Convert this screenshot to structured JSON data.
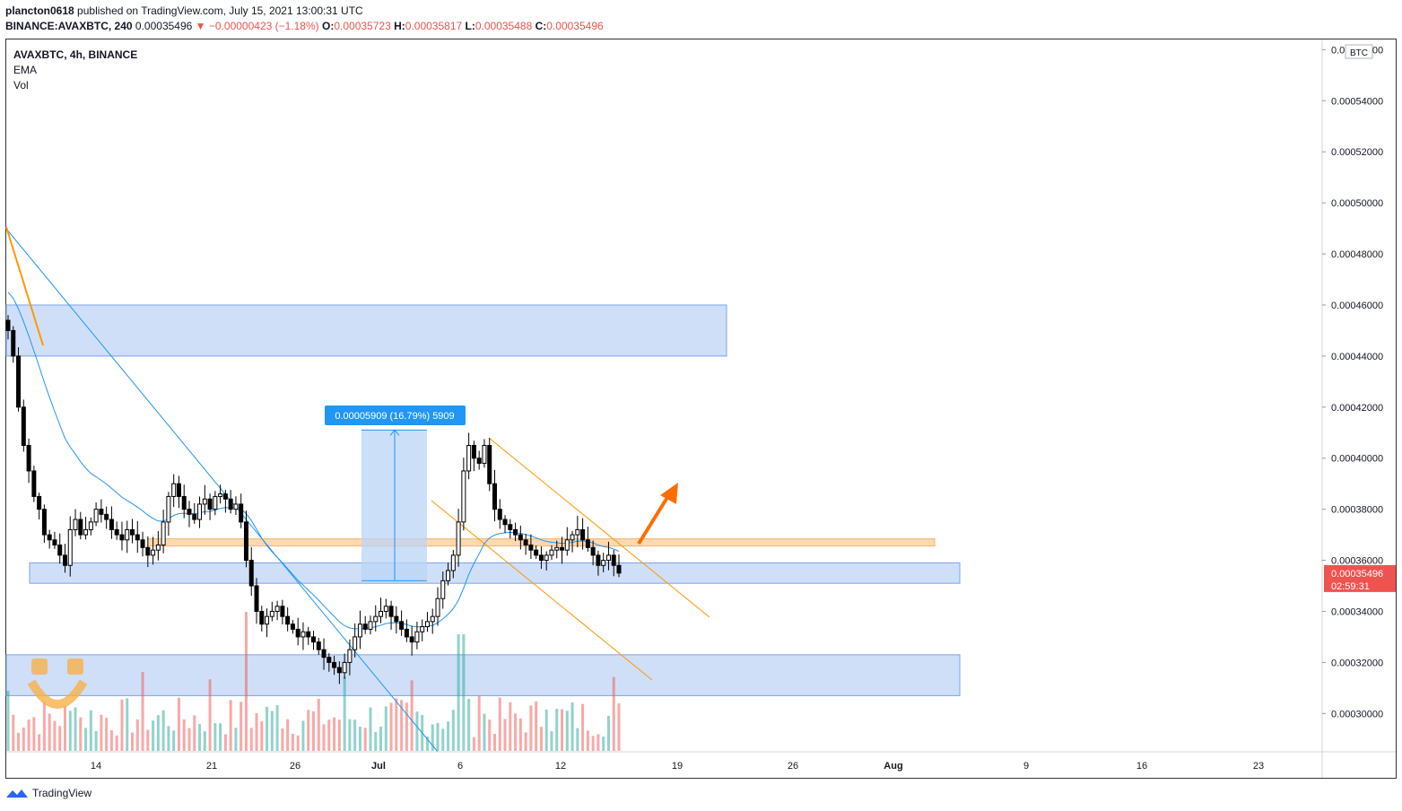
{
  "header": {
    "author": "plancton0618",
    "published": "published on TradingView.com, July 15, 2021 13:00:31 UTC"
  },
  "ticker": {
    "symbol": "BINANCE:AVAXBTC, 240",
    "last": "0.00035496",
    "change": "▼ −0.00000423 (−1.18%)",
    "o_label": "O:",
    "o": "0.00035723",
    "h_label": "H:",
    "h": "0.00035817",
    "l_label": "L:",
    "l": "0.00035488",
    "c_label": "C:",
    "c": "0.00035496"
  },
  "legend": {
    "title": "AVAXBTC, 4h, BINANCE",
    "ema": "EMA",
    "vol": "Vol"
  },
  "footer": {
    "brand": "TradingView"
  },
  "colors": {
    "up": "#26a69a",
    "down": "#ef5350",
    "zone": "#a8c4f2",
    "orange": "#ff9800",
    "ema": "#2196f3",
    "price_label": "#ef5350"
  },
  "chart_data": {
    "type": "line",
    "currency": "BTC",
    "y_ticks": [
      "0.00030000",
      "0.00032000",
      "0.00034000",
      "0.00036000",
      "0.00038000",
      "0.00040000",
      "0.00042000",
      "0.00044000",
      "0.00046000",
      "0.00048000",
      "0.00050000",
      "0.00052000",
      "0.00054000",
      "0.00056000"
    ],
    "x_ticks": [
      "14",
      "21",
      "26",
      "Jul",
      "6",
      "12",
      "19",
      "26",
      "Aug",
      "9",
      "16",
      "23"
    ],
    "ylim": [
      0.000285,
      0.000564
    ],
    "price_label": {
      "value": "0.00035496",
      "countdown": "02:59:31"
    },
    "measure_label": "0.00005909 (16.79%) 5909",
    "close_series": {
      "name": "AVAXBTC",
      "values": [
        0.00045,
        0.00044,
        0.00042,
        0.000405,
        0.000395,
        0.000385,
        0.00038,
        0.00037,
        0.000368,
        0.000366,
        0.000362,
        0.000358,
        0.000372,
        0.000376,
        0.00037,
        0.000372,
        0.000375,
        0.00038,
        0.000378,
        0.000376,
        0.000372,
        0.00037,
        0.000368,
        0.000372,
        0.00037,
        0.000368,
        0.000365,
        0.000362,
        0.000364,
        0.000366,
        0.000375,
        0.000385,
        0.00039,
        0.000385,
        0.00038,
        0.000378,
        0.000376,
        0.000382,
        0.000384,
        0.00038,
        0.000385,
        0.000386,
        0.000384,
        0.00038,
        0.000382,
        0.000375,
        0.00036,
        0.00035,
        0.00034,
        0.000335,
        0.000338,
        0.00034,
        0.000342,
        0.000338,
        0.000335,
        0.000333,
        0.00033,
        0.000332,
        0.00033,
        0.000328,
        0.000325,
        0.000322,
        0.00032,
        0.000318,
        0.000316,
        0.00032,
        0.000325,
        0.00033,
        0.000335,
        0.000333,
        0.000336,
        0.000338,
        0.00034,
        0.000342,
        0.000338,
        0.000336,
        0.000333,
        0.00033,
        0.000328,
        0.000332,
        0.000334,
        0.000336,
        0.000338,
        0.000345,
        0.000352,
        0.000356,
        0.000362,
        0.000375,
        0.000395,
        0.000405,
        0.0004,
        0.000398,
        0.000405,
        0.00039,
        0.00038,
        0.000376,
        0.000374,
        0.000372,
        0.00037,
        0.000368,
        0.000366,
        0.000364,
        0.000362,
        0.00036,
        0.000362,
        0.000364,
        0.000365,
        0.000364,
        0.000368,
        0.00037,
        0.000372,
        0.000368,
        0.000365,
        0.000362,
        0.000358,
        0.00036,
        0.000362,
        0.000358,
        0.000355
      ]
    },
    "zones": [
      {
        "from": 0.00044,
        "to": 0.00046
      },
      {
        "from": 0.000351,
        "to": 0.000359
      },
      {
        "from": 0.000307,
        "to": 0.000323
      }
    ],
    "resistance_line": 0.000367,
    "measure": {
      "from": 0.000352,
      "to": 0.000411
    }
  }
}
